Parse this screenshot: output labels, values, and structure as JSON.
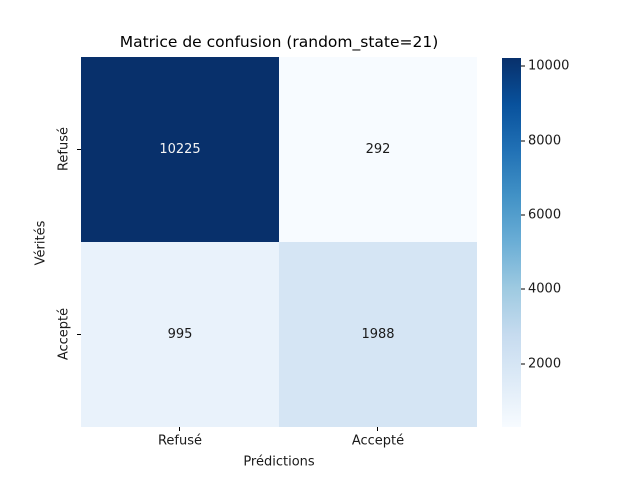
{
  "figure": {
    "background": "#ffffff"
  },
  "chart_data": {
    "type": "heatmap",
    "title": "Matrice de confusion (random_state=21)",
    "xlabel": "Prédictions",
    "ylabel": "Vérités",
    "x_categories": [
      "Refusé",
      "Accepté"
    ],
    "y_categories": [
      "Refusé",
      "Accepté"
    ],
    "matrix": [
      [
        10225,
        292
      ],
      [
        995,
        1988
      ]
    ],
    "vmin": 292,
    "vmax": 10225,
    "colormap": "Blues",
    "colormap_stops": [
      "#f7fbff",
      "#deebf7",
      "#c6dbef",
      "#9ecae1",
      "#6baed6",
      "#4292c6",
      "#2171b5",
      "#08519c",
      "#08306b"
    ],
    "colorbar_ticks": [
      2000,
      4000,
      6000,
      8000,
      10000
    ],
    "colorbar_position": "right",
    "grid": false,
    "cells": [
      {
        "row": "Refusé",
        "col": "Refusé",
        "value": "10225",
        "bg": "#08306b",
        "fg": "#f5f5f5"
      },
      {
        "row": "Refusé",
        "col": "Accepté",
        "value": "292",
        "bg": "#f7fbff",
        "fg": "#1a1a1a"
      },
      {
        "row": "Accepté",
        "col": "Refusé",
        "value": "995",
        "bg": "#e9f2fb",
        "fg": "#1a1a1a"
      },
      {
        "row": "Accepté",
        "col": "Accepté",
        "value": "1988",
        "bg": "#d5e5f4",
        "fg": "#1a1a1a"
      }
    ]
  }
}
